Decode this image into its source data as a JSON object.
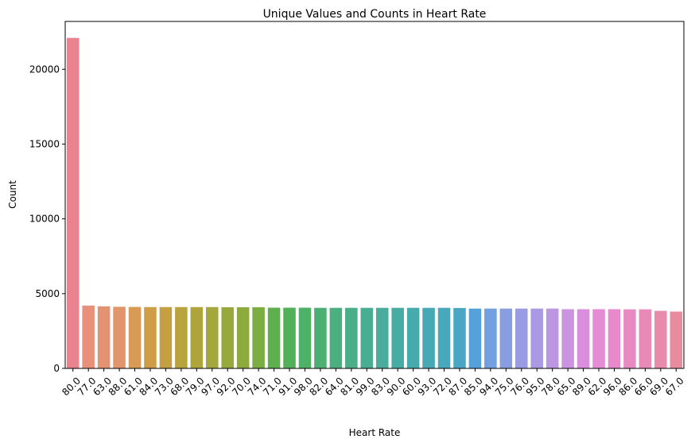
{
  "chart_data": {
    "type": "bar",
    "title": "Unique Values and Counts in Heart Rate",
    "xlabel": "Heart Rate",
    "ylabel": "Count",
    "ylim": [
      0,
      23200
    ],
    "yticks": [
      0,
      5000,
      10000,
      15000,
      20000
    ],
    "grid": false,
    "categories": [
      "80.0",
      "77.0",
      "63.0",
      "88.0",
      "61.0",
      "84.0",
      "73.0",
      "68.0",
      "79.0",
      "97.0",
      "92.0",
      "70.0",
      "74.0",
      "71.0",
      "91.0",
      "98.0",
      "82.0",
      "64.0",
      "81.0",
      "99.0",
      "83.0",
      "90.0",
      "60.0",
      "93.0",
      "72.0",
      "87.0",
      "85.0",
      "94.0",
      "75.0",
      "76.0",
      "95.0",
      "78.0",
      "65.0",
      "89.0",
      "62.0",
      "96.0",
      "86.0",
      "66.0",
      "69.0",
      "67.0"
    ],
    "values": [
      22100,
      4200,
      4150,
      4120,
      4110,
      4100,
      4100,
      4100,
      4100,
      4100,
      4090,
      4090,
      4090,
      4060,
      4060,
      4060,
      4050,
      4050,
      4050,
      4050,
      4050,
      4050,
      4050,
      4050,
      4050,
      4040,
      4000,
      4000,
      4000,
      4000,
      4000,
      4000,
      3960,
      3960,
      3960,
      3960,
      3950,
      3950,
      3850,
      3800
    ],
    "colors": [
      "#e8838f",
      "#e8907a",
      "#e39372",
      "#e0966a",
      "#d99a55",
      "#cf9d45",
      "#c4a042",
      "#b9a33f",
      "#ada53c",
      "#a3a73c",
      "#97a93b",
      "#8cab3c",
      "#7cad42",
      "#5eb04c",
      "#52b158",
      "#4db167",
      "#4cb074",
      "#4baf80",
      "#4aae89",
      "#49ad93",
      "#49ac9c",
      "#48aba4",
      "#47aaac",
      "#47a9b4",
      "#48a8bc",
      "#4aa6c5",
      "#55a2db",
      "#73a0e0",
      "#889ee2",
      "#9a9ce3",
      "#ac99e3",
      "#bd96e1",
      "#cc93e0",
      "#da8fdd",
      "#e68bd6",
      "#e889cc",
      "#e88ac2",
      "#e88ab8",
      "#e88aac",
      "#e88b9f"
    ]
  }
}
